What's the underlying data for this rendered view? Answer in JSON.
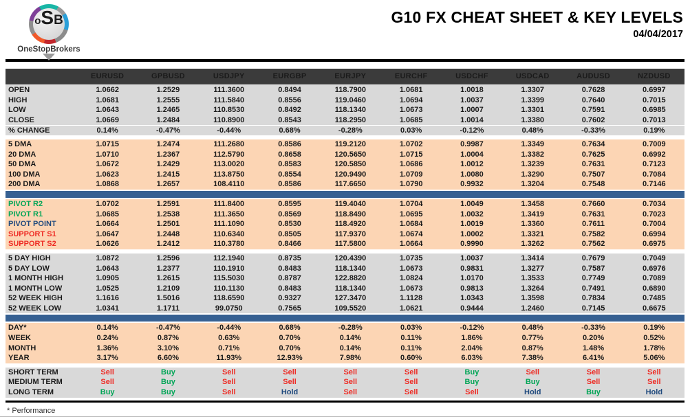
{
  "logo": {
    "letter_o": "o",
    "letter_s": "S",
    "letter_b": "B",
    "brand": "OneStopBrokers"
  },
  "header": {
    "title": "G10 FX CHEAT SHEET & KEY LEVELS",
    "date": "04/04/2017"
  },
  "colors": {
    "header_bg": "#3b3b3b",
    "gray_row_bg": "#d9d9d9",
    "peach_row_bg": "#fcd5b4",
    "divider_blue": "#366092",
    "buy_green": "#00a556",
    "sell_red": "#ee2b24",
    "hold_navy": "#1f497d"
  },
  "chart_data": {
    "type": "table",
    "title": "G10 FX CHEAT SHEET & KEY LEVELS",
    "columns": [
      "EURUSD",
      "GPBUSD",
      "USDJPY",
      "EURGBP",
      "EURJPY",
      "EURCHF",
      "USDCHF",
      "USDCAD",
      "AUDUSD",
      "NZDUSD"
    ],
    "sections": [
      {
        "id": "ohlc",
        "bg": "gray",
        "divider_after": "gap",
        "rows": [
          {
            "label": "OPEN",
            "values": [
              "1.0662",
              "1.2529",
              "111.3600",
              "0.8494",
              "118.7900",
              "1.0681",
              "1.0018",
              "1.3307",
              "0.7628",
              "0.6997"
            ]
          },
          {
            "label": "HIGH",
            "values": [
              "1.0681",
              "1.2555",
              "111.5840",
              "0.8556",
              "119.0460",
              "1.0694",
              "1.0037",
              "1.3399",
              "0.7640",
              "0.7015"
            ]
          },
          {
            "label": "LOW",
            "values": [
              "1.0643",
              "1.2465",
              "110.8530",
              "0.8492",
              "118.1340",
              "1.0673",
              "1.0007",
              "1.3301",
              "0.7591",
              "0.6985"
            ]
          },
          {
            "label": "CLOSE",
            "values": [
              "1.0669",
              "1.2484",
              "110.8900",
              "0.8543",
              "118.2950",
              "1.0685",
              "1.0014",
              "1.3380",
              "0.7602",
              "0.7013"
            ]
          },
          {
            "label": "% CHANGE",
            "divider_above": true,
            "values": [
              "0.14%",
              "-0.47%",
              "-0.44%",
              "0.68%",
              "-0.28%",
              "0.03%",
              "-0.12%",
              "0.48%",
              "-0.33%",
              "0.19%"
            ]
          }
        ]
      },
      {
        "id": "dma",
        "bg": "peach",
        "divider_after": "bar",
        "rows": [
          {
            "label": "5 DMA",
            "values": [
              "1.0715",
              "1.2474",
              "111.2680",
              "0.8586",
              "119.2120",
              "1.0702",
              "0.9987",
              "1.3349",
              "0.7634",
              "0.7009"
            ]
          },
          {
            "label": "20 DMA",
            "values": [
              "1.0710",
              "1.2367",
              "112.5790",
              "0.8658",
              "120.5650",
              "1.0715",
              "1.0004",
              "1.3382",
              "0.7625",
              "0.6992"
            ]
          },
          {
            "label": "50 DMA",
            "values": [
              "1.0672",
              "1.2429",
              "113.0020",
              "0.8583",
              "120.5850",
              "1.0686",
              "1.0012",
              "1.3239",
              "0.7631",
              "0.7123"
            ]
          },
          {
            "label": "100 DMA",
            "values": [
              "1.0623",
              "1.2415",
              "113.8750",
              "0.8554",
              "120.9490",
              "1.0709",
              "1.0080",
              "1.3290",
              "0.7507",
              "0.7084"
            ]
          },
          {
            "label": "200 DMA",
            "values": [
              "1.0868",
              "1.2657",
              "108.4110",
              "0.8586",
              "117.6650",
              "1.0790",
              "0.9932",
              "1.3204",
              "0.7548",
              "0.7146"
            ]
          }
        ]
      },
      {
        "id": "pivots",
        "bg": "peach",
        "divider_after": "gap",
        "rows": [
          {
            "label": "PIVOT R2",
            "label_color": "green",
            "values": [
              "1.0702",
              "1.2591",
              "111.8400",
              "0.8595",
              "119.4040",
              "1.0704",
              "1.0049",
              "1.3458",
              "0.7660",
              "0.7034"
            ]
          },
          {
            "label": "PIVOT R1",
            "label_color": "green",
            "values": [
              "1.0685",
              "1.2538",
              "111.3650",
              "0.8569",
              "118.8490",
              "1.0695",
              "1.0032",
              "1.3419",
              "0.7631",
              "0.7023"
            ]
          },
          {
            "label": "PIVOT POINT",
            "label_color": "navy",
            "values": [
              "1.0664",
              "1.2501",
              "111.1090",
              "0.8530",
              "118.4920",
              "1.0684",
              "1.0019",
              "1.3360",
              "0.7611",
              "0.7004"
            ]
          },
          {
            "label": "SUPPORT S1",
            "label_color": "red",
            "values": [
              "1.0647",
              "1.2448",
              "110.6340",
              "0.8505",
              "117.9370",
              "1.0674",
              "1.0002",
              "1.3321",
              "0.7582",
              "0.6994"
            ]
          },
          {
            "label": "SUPPORT S2",
            "label_color": "red",
            "values": [
              "1.0626",
              "1.2412",
              "110.3780",
              "0.8466",
              "117.5800",
              "1.0664",
              "0.9990",
              "1.3262",
              "0.7562",
              "0.6975"
            ]
          }
        ]
      },
      {
        "id": "ranges",
        "bg": "gray",
        "divider_after": "bar",
        "rows": [
          {
            "label": "5 DAY HIGH",
            "values": [
              "1.0872",
              "1.2596",
              "112.1940",
              "0.8735",
              "120.4390",
              "1.0735",
              "1.0037",
              "1.3414",
              "0.7679",
              "0.7049"
            ]
          },
          {
            "label": "5 DAY LOW",
            "values": [
              "1.0643",
              "1.2377",
              "110.1910",
              "0.8483",
              "118.1340",
              "1.0673",
              "0.9831",
              "1.3277",
              "0.7587",
              "0.6976"
            ]
          },
          {
            "label": "1 MONTH HIGH",
            "values": [
              "1.0905",
              "1.2615",
              "115.5030",
              "0.8787",
              "122.8820",
              "1.0824",
              "1.0170",
              "1.3533",
              "0.7749",
              "0.7089"
            ]
          },
          {
            "label": "1 MONTH LOW",
            "values": [
              "1.0525",
              "1.2109",
              "110.1130",
              "0.8483",
              "118.1340",
              "1.0673",
              "0.9813",
              "1.3264",
              "0.7491",
              "0.6890"
            ]
          },
          {
            "label": "52 WEEK HIGH",
            "values": [
              "1.1616",
              "1.5016",
              "118.6590",
              "0.9327",
              "127.3470",
              "1.1128",
              "1.0343",
              "1.3598",
              "0.7834",
              "0.7485"
            ]
          },
          {
            "label": "52 WEEK LOW",
            "values": [
              "1.0341",
              "1.1711",
              "99.0750",
              "0.7565",
              "109.5520",
              "1.0621",
              "0.9444",
              "1.2460",
              "0.7145",
              "0.6675"
            ]
          }
        ]
      },
      {
        "id": "performance",
        "bg": "peach",
        "divider_after": "gap",
        "rows": [
          {
            "label": "DAY*",
            "values": [
              "0.14%",
              "-0.47%",
              "-0.44%",
              "0.68%",
              "-0.28%",
              "0.03%",
              "-0.12%",
              "0.48%",
              "-0.33%",
              "0.19%"
            ]
          },
          {
            "label": "WEEK",
            "values": [
              "0.24%",
              "0.87%",
              "0.63%",
              "0.70%",
              "0.14%",
              "0.11%",
              "1.86%",
              "0.77%",
              "0.20%",
              "0.52%"
            ]
          },
          {
            "label": "MONTH",
            "values": [
              "1.36%",
              "3.10%",
              "0.71%",
              "0.70%",
              "0.14%",
              "0.11%",
              "2.04%",
              "0.87%",
              "1.48%",
              "1.78%"
            ]
          },
          {
            "label": "YEAR",
            "values": [
              "3.17%",
              "6.60%",
              "11.93%",
              "12.93%",
              "7.98%",
              "0.60%",
              "6.03%",
              "7.38%",
              "6.41%",
              "5.06%"
            ]
          }
        ]
      },
      {
        "id": "signals",
        "bg": "gray",
        "divider_after": "none",
        "rows": [
          {
            "label": "SHORT TERM",
            "values": [
              "Sell",
              "Buy",
              "Sell",
              "Sell",
              "Sell",
              "Sell",
              "Buy",
              "Sell",
              "Sell",
              "Sell"
            ]
          },
          {
            "label": "MEDIUM TERM",
            "values": [
              "Sell",
              "Buy",
              "Sell",
              "Sell",
              "Sell",
              "Sell",
              "Buy",
              "Buy",
              "Sell",
              "Sell"
            ]
          },
          {
            "label": "LONG TERM",
            "values": [
              "Buy",
              "Buy",
              "Sell",
              "Hold",
              "Sell",
              "Sell",
              "Sell",
              "Hold",
              "Buy",
              "Hold"
            ]
          }
        ]
      }
    ]
  },
  "footer": {
    "note": "* Performance"
  }
}
